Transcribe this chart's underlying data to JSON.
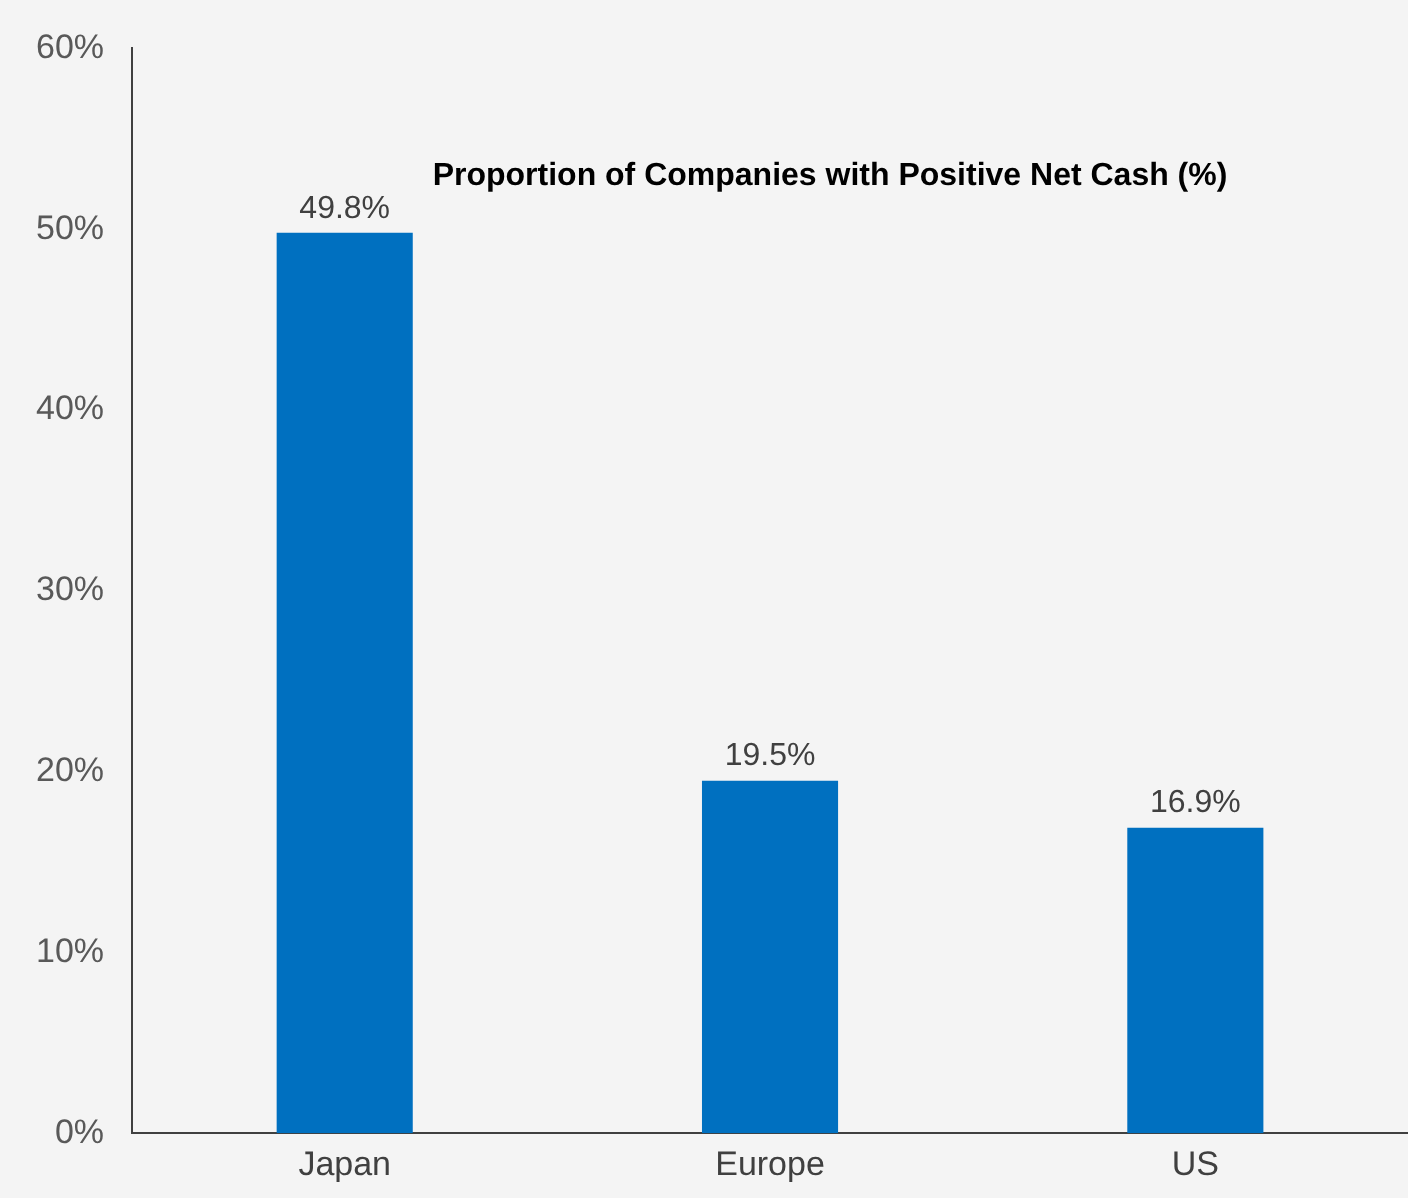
{
  "chart_data": {
    "type": "bar",
    "title": "Proportion of Companies with Positive Net Cash (%)",
    "categories": [
      "Japan",
      "Europe",
      "US"
    ],
    "values": [
      49.8,
      19.5,
      16.9
    ],
    "value_labels": [
      "49.8%",
      "19.5%",
      "16.9%"
    ],
    "color": "#0070c0",
    "ylim": [
      0,
      60
    ],
    "yticks": [
      {
        "value": 0,
        "label": "0%"
      },
      {
        "value": 10,
        "label": "10%"
      },
      {
        "value": 20,
        "label": "20%"
      },
      {
        "value": 30,
        "label": "30%"
      },
      {
        "value": 40,
        "label": "40%"
      },
      {
        "value": 50,
        "label": "50%"
      },
      {
        "value": 60,
        "label": "60%"
      }
    ],
    "grid": false,
    "legend": false
  }
}
